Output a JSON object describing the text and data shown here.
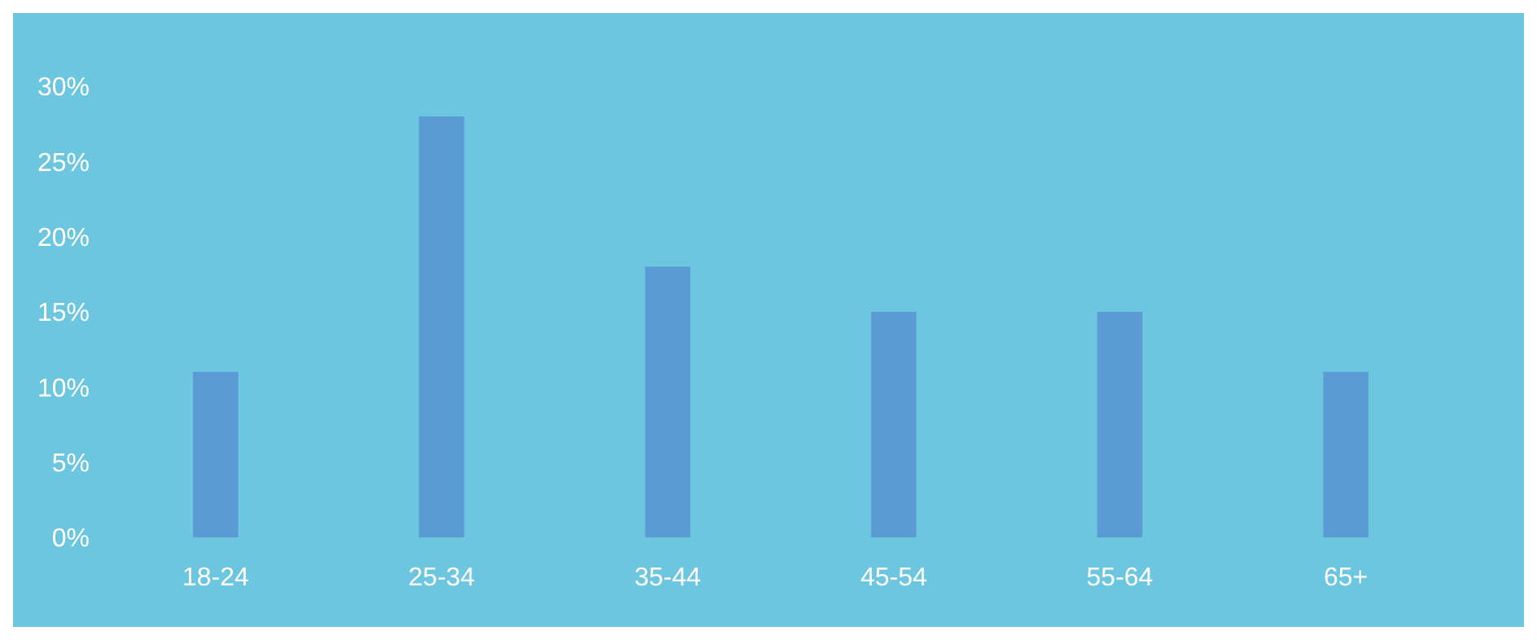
{
  "chart_data": {
    "type": "bar",
    "categories": [
      "18-24",
      "25-34",
      "35-44",
      "45-54",
      "55-64",
      "65+"
    ],
    "values": [
      11,
      28,
      18,
      15,
      15,
      11
    ],
    "color": "#5b9bd5",
    "ylim": [
      0,
      30
    ],
    "yticks": [
      {
        "value": 0,
        "label": "0%"
      },
      {
        "value": 5,
        "label": "5%"
      },
      {
        "value": 10,
        "label": "10%"
      },
      {
        "value": 15,
        "label": "15%"
      },
      {
        "value": 20,
        "label": "20%"
      },
      {
        "value": 25,
        "label": "25%"
      },
      {
        "value": 30,
        "label": "30%"
      }
    ],
    "grid": false,
    "legend": false
  }
}
